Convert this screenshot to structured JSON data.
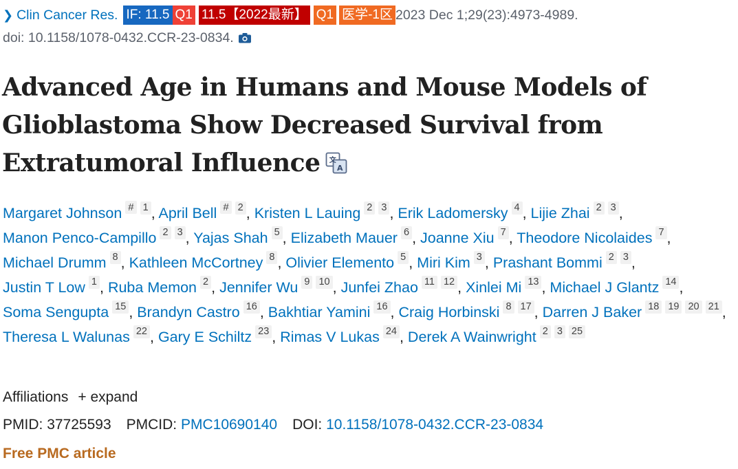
{
  "citation": {
    "journal": "Clin Cancer Res.",
    "badges": {
      "impact": "IF: 11.5",
      "quartile": "Q1",
      "latest": "11.5【2022最新】",
      "quartile2": "Q1",
      "cas": "医学-1区"
    },
    "date_pages": "2023 Dec 1;29(23):4973-4989.",
    "doi_line": "doi: 10.1158/1078-0432.CCR-23-0834."
  },
  "title": "Advanced Age in Humans and Mouse Models of Glioblastoma Show Decreased Survival from Extratumoral Influence",
  "authors": [
    {
      "name": "Margaret Johnson",
      "sups": [
        "#",
        "1"
      ]
    },
    {
      "name": "April Bell",
      "sups": [
        "#",
        "2"
      ]
    },
    {
      "name": "Kristen L Lauing",
      "sups": [
        "2",
        "3"
      ]
    },
    {
      "name": "Erik Ladomersky",
      "sups": [
        "4"
      ]
    },
    {
      "name": "Lijie Zhai",
      "sups": [
        "2",
        "3"
      ]
    },
    {
      "name": "Manon Penco-Campillo",
      "sups": [
        "2",
        "3"
      ]
    },
    {
      "name": "Yajas Shah",
      "sups": [
        "5"
      ]
    },
    {
      "name": "Elizabeth Mauer",
      "sups": [
        "6"
      ]
    },
    {
      "name": "Joanne Xiu",
      "sups": [
        "7"
      ]
    },
    {
      "name": "Theodore Nicolaides",
      "sups": [
        "7"
      ]
    },
    {
      "name": "Michael Drumm",
      "sups": [
        "8"
      ]
    },
    {
      "name": "Kathleen McCortney",
      "sups": [
        "8"
      ]
    },
    {
      "name": "Olivier Elemento",
      "sups": [
        "5"
      ]
    },
    {
      "name": "Miri Kim",
      "sups": [
        "3"
      ]
    },
    {
      "name": "Prashant Bommi",
      "sups": [
        "2",
        "3"
      ]
    },
    {
      "name": "Justin T Low",
      "sups": [
        "1"
      ]
    },
    {
      "name": "Ruba Memon",
      "sups": [
        "2"
      ]
    },
    {
      "name": "Jennifer Wu",
      "sups": [
        "9",
        "10"
      ]
    },
    {
      "name": "Junfei Zhao",
      "sups": [
        "11",
        "12"
      ]
    },
    {
      "name": "Xinlei Mi",
      "sups": [
        "13"
      ]
    },
    {
      "name": "Michael J Glantz",
      "sups": [
        "14"
      ]
    },
    {
      "name": "Soma Sengupta",
      "sups": [
        "15"
      ]
    },
    {
      "name": "Brandyn Castro",
      "sups": [
        "16"
      ]
    },
    {
      "name": "Bakhtiar Yamini",
      "sups": [
        "16"
      ]
    },
    {
      "name": "Craig Horbinski",
      "sups": [
        "8",
        "17"
      ]
    },
    {
      "name": "Darren J Baker",
      "sups": [
        "18",
        "19",
        "20",
        "21"
      ]
    },
    {
      "name": "Theresa L Walunas",
      "sups": [
        "22"
      ]
    },
    {
      "name": "Gary E Schiltz",
      "sups": [
        "23"
      ]
    },
    {
      "name": "Rimas V Lukas",
      "sups": [
        "24"
      ]
    },
    {
      "name": "Derek A Wainwright",
      "sups": [
        "2",
        "3",
        "25"
      ]
    }
  ],
  "affiliations": {
    "label": "Affiliations",
    "toggle_icon": "+",
    "toggle": "expand"
  },
  "identifiers": {
    "pmid_label": "PMID:",
    "pmid": "37725593",
    "pmcid_label": "PMCID:",
    "pmcid": "PMC10690140",
    "doi_label": "DOI:",
    "doi": "10.1158/1078-0432.CCR-23-0834"
  },
  "free_article": "Free PMC article",
  "icons": {
    "camera": "camera-icon",
    "translate": "translate-icon",
    "chevron": "chevron-right-icon"
  }
}
